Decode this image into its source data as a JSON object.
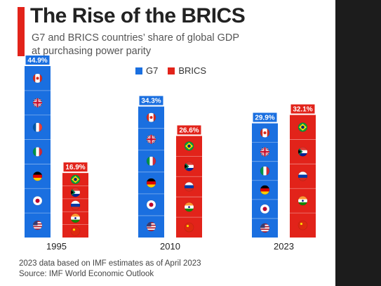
{
  "header": {
    "title": "The Rise of the BRICS",
    "subtitle_line1": "G7 and BRICS countries’ share of global GDP",
    "subtitle_line2": "at purchasing power parity"
  },
  "legend": {
    "g7_label": "G7",
    "brics_label": "BRICS"
  },
  "colors": {
    "g7": "#1a6fe0",
    "brics": "#e2231a",
    "accent": "#e2231a"
  },
  "chart_data": {
    "type": "bar",
    "categories": [
      "1995",
      "2010",
      "2023"
    ],
    "series": [
      {
        "name": "G7",
        "values": [
          44.9,
          34.3,
          29.9
        ],
        "labels": [
          "44.9%",
          "34.3%",
          "29.9%"
        ],
        "flags": [
          [
            "canada",
            "uk",
            "france",
            "italy",
            "germany",
            "japan",
            "usa"
          ],
          [
            "canada",
            "uk",
            "italy",
            "germany",
            "japan",
            "usa"
          ],
          [
            "canada",
            "uk",
            "italy",
            "germany",
            "japan",
            "usa"
          ]
        ]
      },
      {
        "name": "BRICS",
        "values": [
          16.9,
          26.6,
          32.1
        ],
        "labels": [
          "16.9%",
          "26.6%",
          "32.1%"
        ],
        "flags": [
          [
            "brazil",
            "south-africa",
            "russia",
            "india",
            "china"
          ],
          [
            "brazil",
            "south-africa",
            "russia",
            "india",
            "china"
          ],
          [
            "brazil",
            "south-africa",
            "russia",
            "india",
            "china"
          ]
        ]
      }
    ],
    "ylim": [
      0,
      46
    ]
  },
  "footer": {
    "note": "2023 data based on IMF estimates as of April 2023",
    "source": "Source: IMF World Economic Outlook"
  }
}
